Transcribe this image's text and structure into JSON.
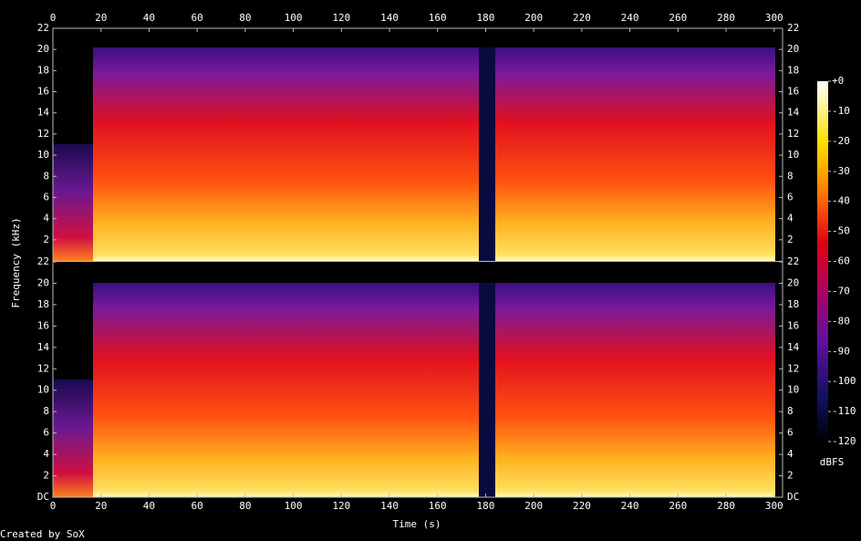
{
  "chart_data": {
    "type": "spectrogram",
    "xlabel": "Time (s)",
    "ylabel": "Frequency (kHz)",
    "footer": "Created by SoX",
    "colorbar_label": "dBFS",
    "xlim": [
      0,
      303.5
    ],
    "xticks": [
      0,
      20,
      40,
      60,
      80,
      100,
      120,
      140,
      160,
      180,
      200,
      220,
      240,
      260,
      280,
      300
    ],
    "channels": [
      {
        "ylim": [
          0,
          22
        ],
        "yticks": [
          2,
          4,
          6,
          8,
          10,
          12,
          14,
          16,
          18,
          20,
          22
        ]
      },
      {
        "ylim": [
          0,
          22
        ],
        "yticks": [
          {
            "value": 0,
            "label": "DC"
          },
          2,
          4,
          6,
          8,
          10,
          12,
          14,
          16,
          18,
          20,
          22
        ]
      }
    ],
    "clim": [
      -120,
      0
    ],
    "cticks": [
      {
        "value": 0,
        "label": "+0"
      },
      -10,
      -20,
      -30,
      -40,
      -50,
      -60,
      -70,
      -80,
      -90,
      -100,
      -110,
      -120
    ]
  }
}
